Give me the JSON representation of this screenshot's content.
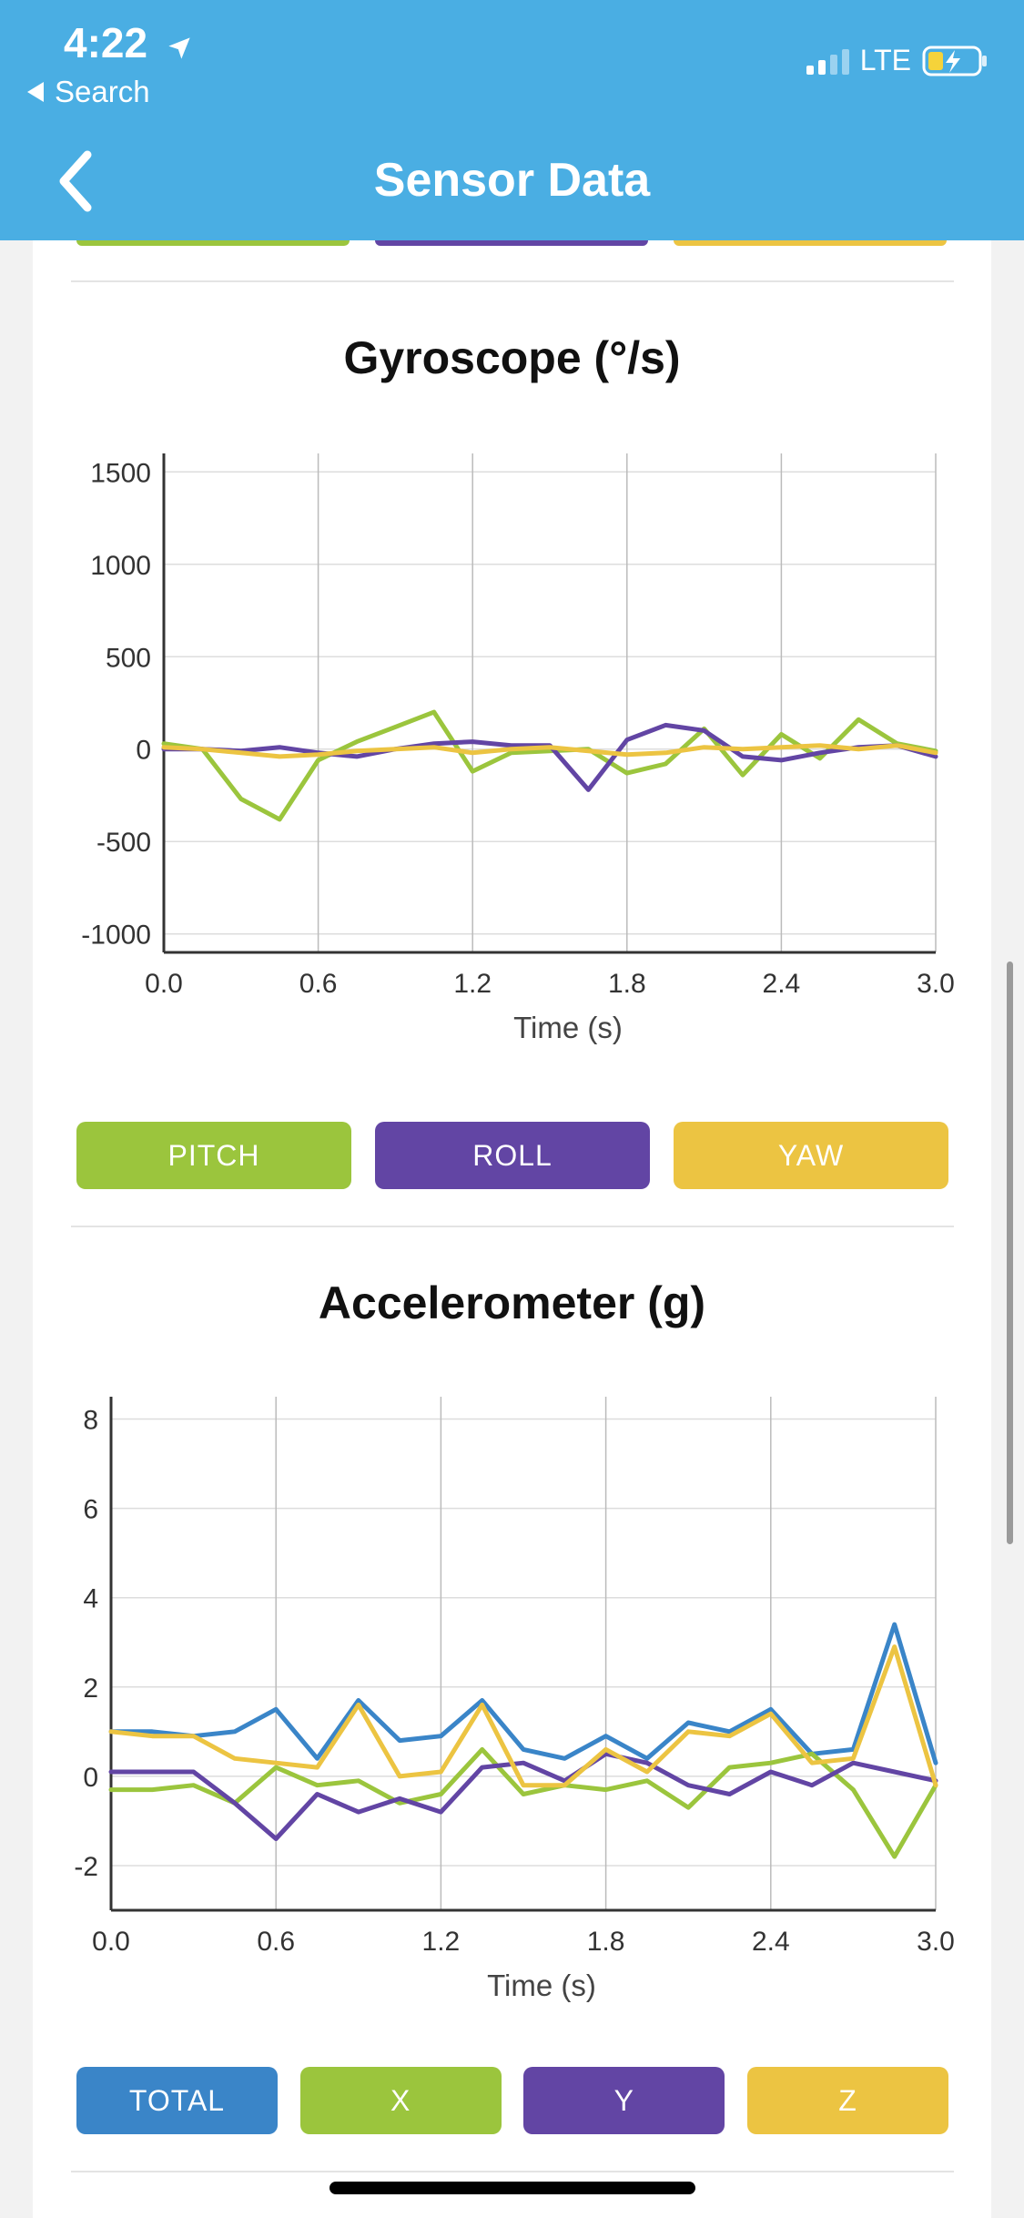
{
  "status_bar": {
    "time": "4:22",
    "location_icon": "location-arrow-icon",
    "back_app_label": "Search",
    "network": "LTE"
  },
  "nav": {
    "title": "Sensor Data",
    "back_icon": "chevron-left-icon"
  },
  "colors": {
    "header": "#4aaee3",
    "green": "#9bc53d",
    "purple": "#6245a4",
    "yellow": "#ecc442",
    "blue": "#3a85c8"
  },
  "gyroscope": {
    "title": "Gyroscope (°/s)",
    "xlabel": "Time (s)",
    "buttons": [
      {
        "label": "PITCH"
      },
      {
        "label": "ROLL"
      },
      {
        "label": "YAW"
      }
    ]
  },
  "accelerometer": {
    "title": "Accelerometer (g)",
    "xlabel": "Time (s)",
    "buttons": [
      {
        "label": "TOTAL"
      },
      {
        "label": "X"
      },
      {
        "label": "Y"
      },
      {
        "label": "Z"
      }
    ]
  },
  "chart_data": [
    {
      "type": "line",
      "title": "Gyroscope (°/s)",
      "xlabel": "Time (s)",
      "ylabel": "",
      "xlim": [
        0,
        3
      ],
      "ylim": [
        -1100,
        1600
      ],
      "xticks": [
        "0.0",
        "0.6",
        "1.2",
        "1.8",
        "2.4",
        "3.0"
      ],
      "yticks": [
        "1500",
        "1000",
        "500",
        "0",
        "-500",
        "-1000"
      ],
      "xtick_values": [
        0,
        0.6,
        1.2,
        1.8,
        2.4,
        3.0
      ],
      "ytick_values": [
        1500,
        1000,
        500,
        0,
        -500,
        -1000
      ],
      "grid": true,
      "x": [
        0,
        0.15,
        0.3,
        0.45,
        0.6,
        0.75,
        0.9,
        1.05,
        1.2,
        1.35,
        1.5,
        1.65,
        1.8,
        1.95,
        2.1,
        2.25,
        2.4,
        2.55,
        2.7,
        2.85,
        3.0
      ],
      "series": [
        {
          "name": "PITCH",
          "color": "#9bc53d",
          "values": [
            30,
            0,
            -270,
            -380,
            -60,
            40,
            120,
            200,
            -120,
            -20,
            -10,
            0,
            -130,
            -80,
            110,
            -140,
            80,
            -50,
            160,
            30,
            -10
          ]
        },
        {
          "name": "ROLL",
          "color": "#6245a4",
          "values": [
            0,
            0,
            -10,
            10,
            -20,
            -40,
            0,
            30,
            40,
            20,
            20,
            -220,
            50,
            130,
            100,
            -40,
            -60,
            -20,
            10,
            20,
            -40
          ]
        },
        {
          "name": "YAW",
          "color": "#ecc442",
          "values": [
            10,
            0,
            -20,
            -40,
            -30,
            -10,
            0,
            10,
            -20,
            0,
            10,
            -10,
            -30,
            -20,
            10,
            0,
            10,
            20,
            0,
            20,
            -20
          ]
        }
      ]
    },
    {
      "type": "line",
      "title": "Accelerometer (g)",
      "xlabel": "Time (s)",
      "ylabel": "",
      "xlim": [
        0,
        3
      ],
      "ylim": [
        -3,
        8.5
      ],
      "xticks": [
        "0.0",
        "0.6",
        "1.2",
        "1.8",
        "2.4",
        "3.0"
      ],
      "yticks": [
        "8",
        "6",
        "4",
        "2",
        "0",
        "-2"
      ],
      "xtick_values": [
        0,
        0.6,
        1.2,
        1.8,
        2.4,
        3.0
      ],
      "ytick_values": [
        8,
        6,
        4,
        2,
        0,
        -2
      ],
      "grid": true,
      "x": [
        0,
        0.15,
        0.3,
        0.45,
        0.6,
        0.75,
        0.9,
        1.05,
        1.2,
        1.35,
        1.5,
        1.65,
        1.8,
        1.95,
        2.1,
        2.25,
        2.4,
        2.55,
        2.7,
        2.85,
        3.0
      ],
      "series": [
        {
          "name": "TOTAL",
          "color": "#3a85c8",
          "values": [
            1.0,
            1.0,
            0.9,
            1.0,
            1.5,
            0.4,
            1.7,
            0.8,
            0.9,
            1.7,
            0.6,
            0.4,
            0.9,
            0.4,
            1.2,
            1.0,
            1.5,
            0.5,
            0.6,
            3.4,
            0.3
          ]
        },
        {
          "name": "X",
          "color": "#9bc53d",
          "values": [
            -0.3,
            -0.3,
            -0.2,
            -0.6,
            0.2,
            -0.2,
            -0.1,
            -0.6,
            -0.4,
            0.6,
            -0.4,
            -0.2,
            -0.3,
            -0.1,
            -0.7,
            0.2,
            0.3,
            0.5,
            -0.3,
            -1.8,
            -0.2
          ]
        },
        {
          "name": "Y",
          "color": "#6245a4",
          "values": [
            0.1,
            0.1,
            0.1,
            -0.6,
            -1.4,
            -0.4,
            -0.8,
            -0.5,
            -0.8,
            0.2,
            0.3,
            -0.1,
            0.5,
            0.3,
            -0.2,
            -0.4,
            0.1,
            -0.2,
            0.3,
            0.1,
            -0.1
          ]
        },
        {
          "name": "Z",
          "color": "#ecc442",
          "values": [
            1.0,
            0.9,
            0.9,
            0.4,
            0.3,
            0.2,
            1.6,
            0.0,
            0.1,
            1.6,
            -0.2,
            -0.2,
            0.6,
            0.1,
            1.0,
            0.9,
            1.4,
            0.3,
            0.4,
            2.9,
            -0.2
          ]
        }
      ]
    }
  ]
}
